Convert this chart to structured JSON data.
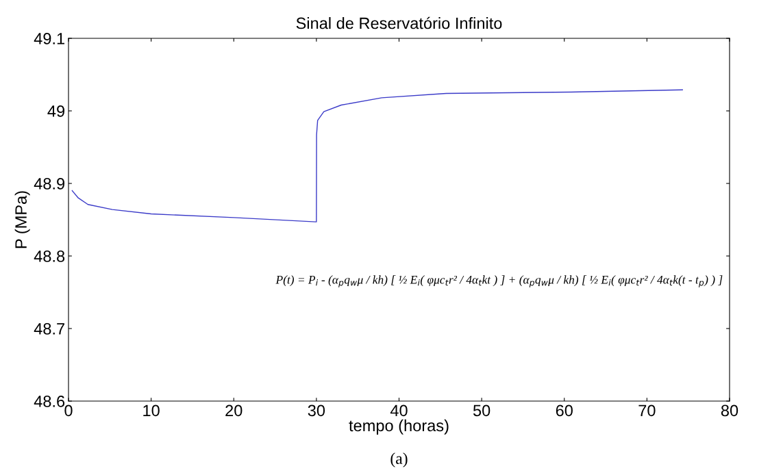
{
  "chart_data": {
    "type": "line",
    "title": "Sinal de Reservatório Infinito",
    "xlabel": "tempo (horas)",
    "ylabel": "P (MPa)",
    "x": [
      0.45,
      1.18,
      2.35,
      5.3,
      10,
      20,
      29.9,
      30.0,
      30.02,
      30.15,
      30.9,
      33.0,
      37.9,
      45.7,
      60.8,
      74.3
    ],
    "series": [
      {
        "color": "#3a3ac8",
        "values": [
          48.89,
          48.88,
          48.871,
          48.864,
          48.858,
          48.853,
          48.847,
          48.847,
          48.967,
          48.987,
          48.999,
          49.008,
          49.018,
          49.024,
          49.026,
          49.029
        ]
      }
    ],
    "xlim": [
      0,
      80
    ],
    "ylim": [
      48.6,
      49.1
    ],
    "xticks": [
      0,
      10,
      20,
      30,
      40,
      50,
      60,
      70,
      80
    ],
    "yticks": [
      48.6,
      48.7,
      48.8,
      48.9,
      49,
      49.1
    ],
    "grid": false,
    "legend": false,
    "annotations": [
      "P(t) = P$_{i}$ - (α$_{p}$q$_{w}$μ / kh) [ ½ E$_{i}$( φμc$_{t}$r² / 4α$_{t}$kt ) ] + (α$_{p}$q$_{w}$μ / kh) [ ½ E$_{i}$( φμc$_{t}$r² / 4α$_{t}$k(t - t$_{p}$) ) ]",
      "(a)"
    ]
  }
}
